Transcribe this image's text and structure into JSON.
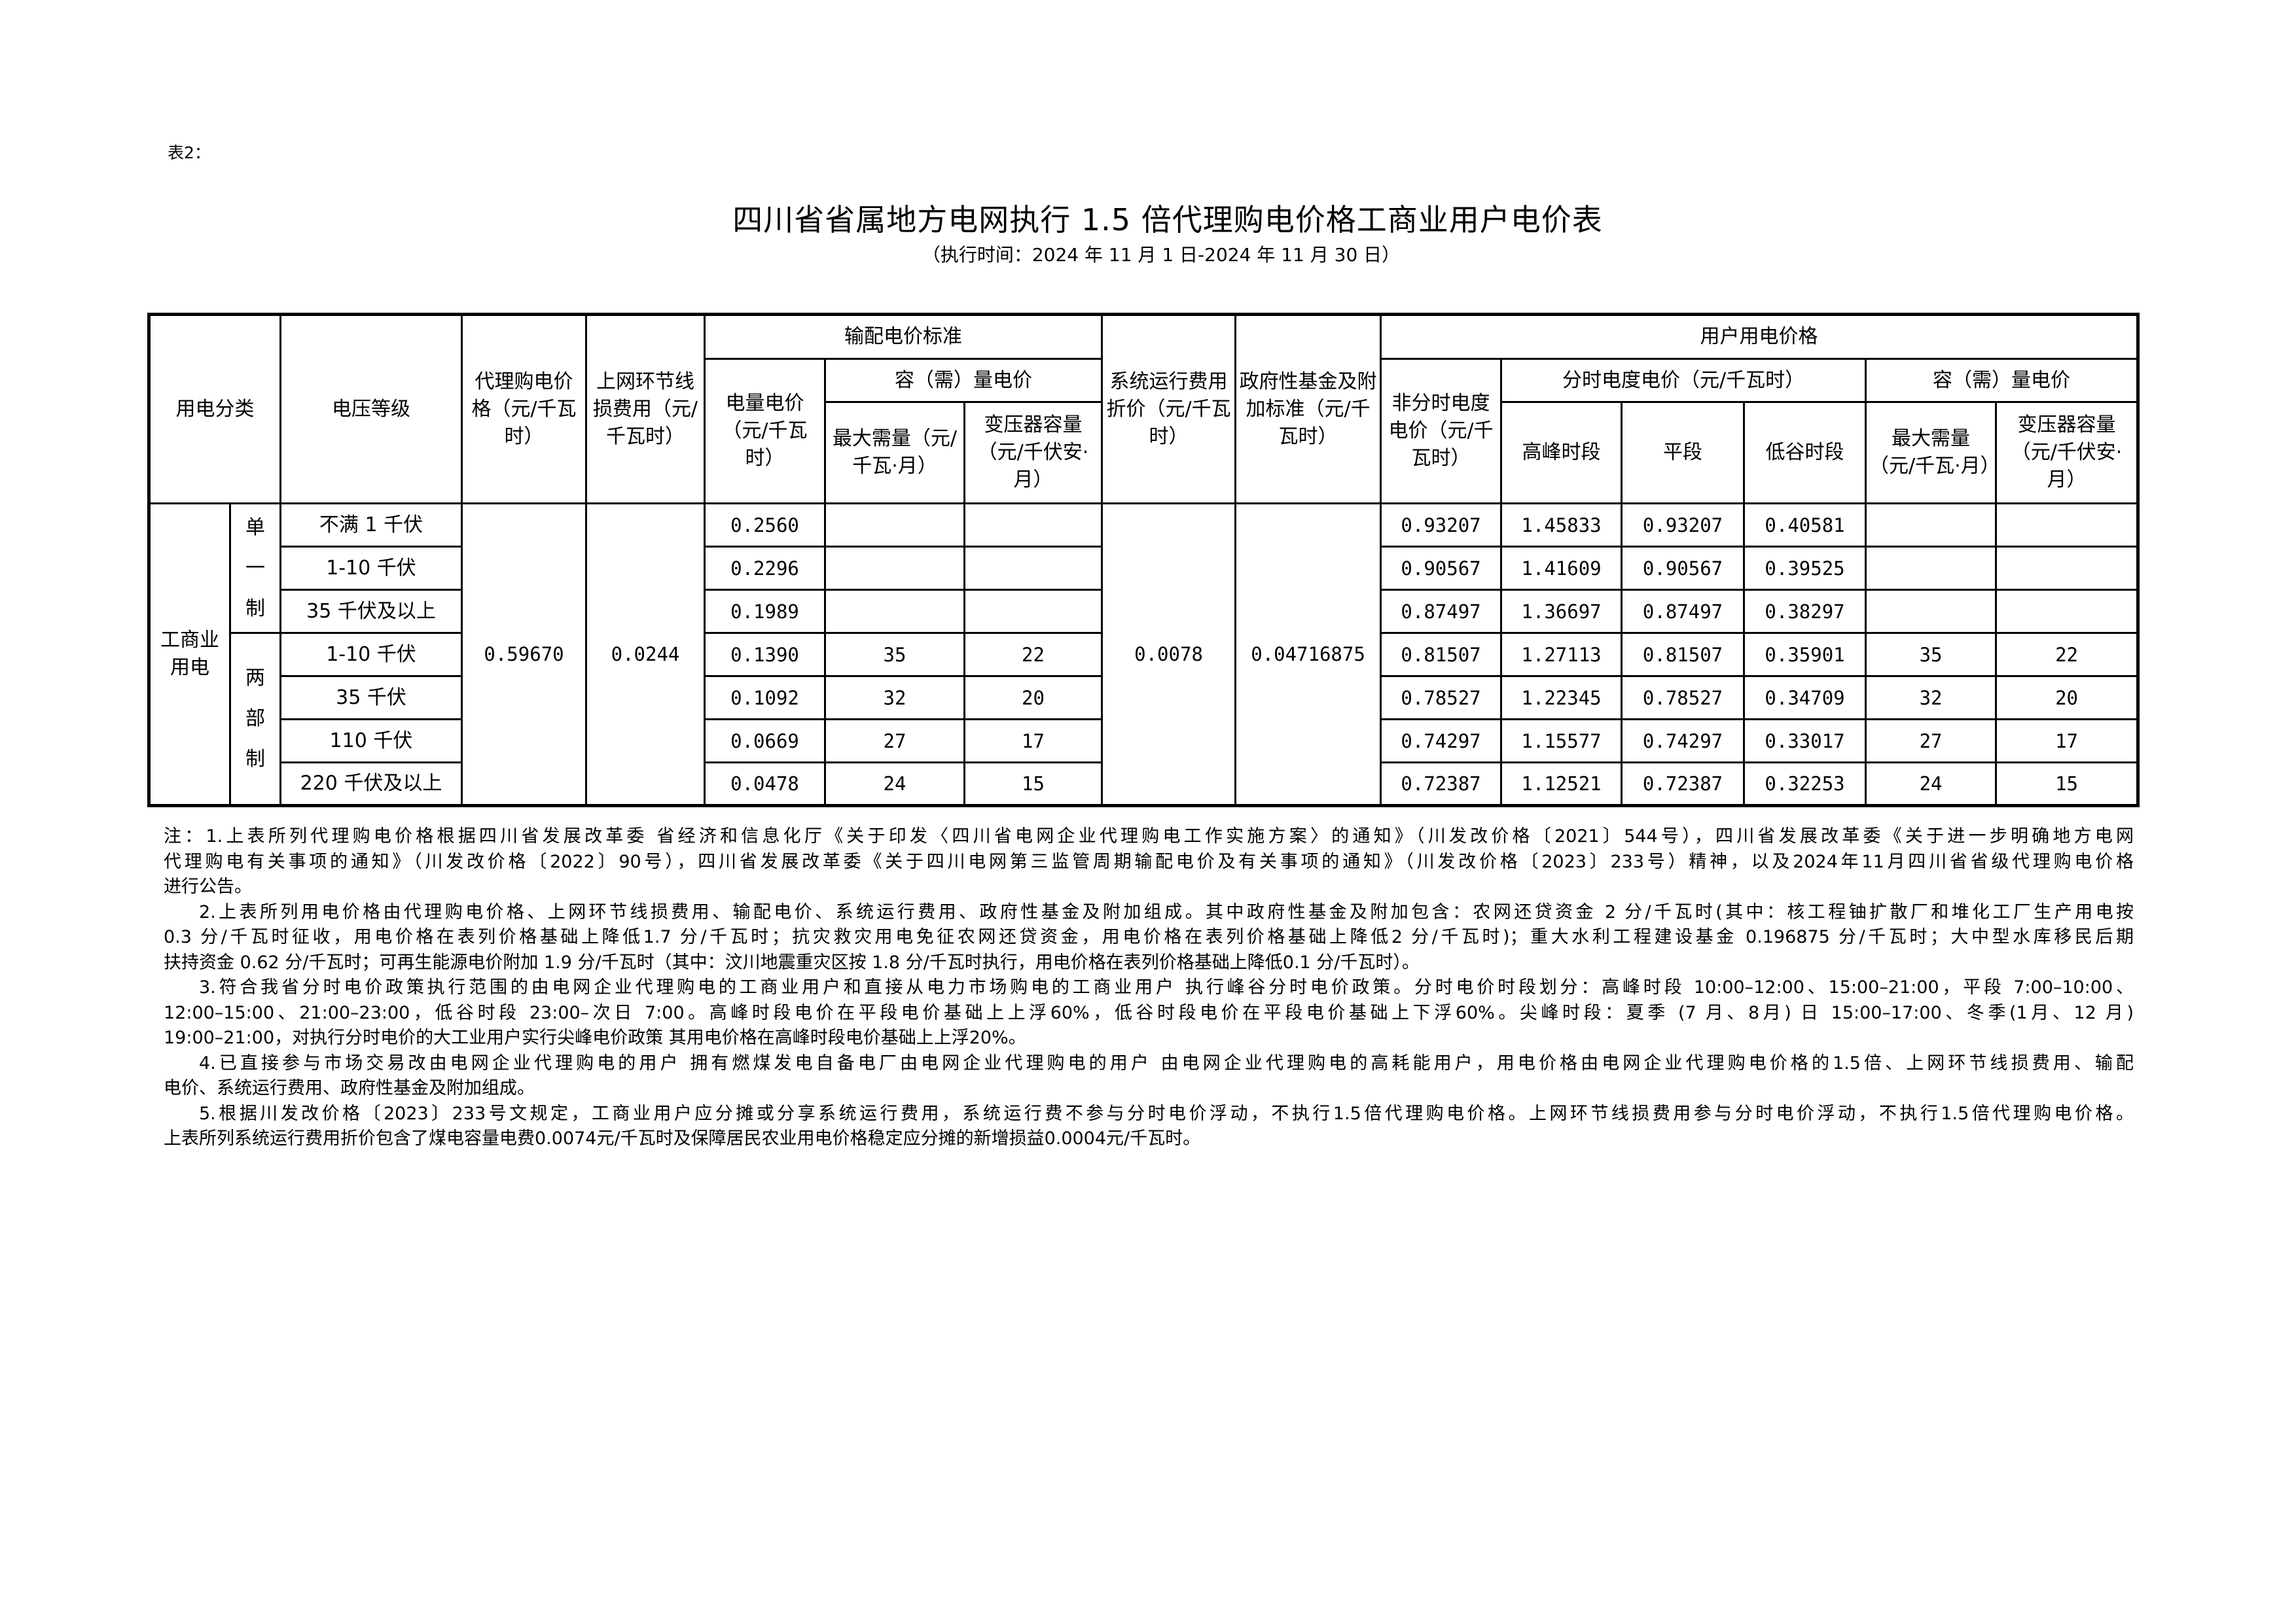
{
  "doc_label": "表2：",
  "title": "四川省省属地方电网执行 1.5 倍代理购电价格工商业用户电价表",
  "subtitle": "（执行时间：2024 年 11 月 1 日-2024 年 11 月 30 日）",
  "table": {
    "headers": {
      "category": "用电分类",
      "voltage": "电压等级",
      "agent_price": "代理购电价格（元/千瓦时）",
      "line_loss": "上网环节线损费用（元/千瓦时）",
      "transmission": "输配电价标准",
      "energy_price": "电量电价（元/千瓦时）",
      "capacity_price": "容（需）量电价",
      "max_demand": "最大需量（元/千瓦·月）",
      "transformer": "变压器容量（元/千伏安·月）",
      "system_cost": "系统运行费用折价（元/千瓦时）",
      "gov_fund": "政府性基金及附加标准（元/千瓦时）",
      "user_price": "用户用电价格",
      "non_tou": "非分时电度电价（元/千瓦时）",
      "tou": "分时电度电价（元/千瓦时）",
      "peak": "高峰时段",
      "flat": "平段",
      "valley": "低谷时段",
      "user_capacity": "容（需）量电价",
      "user_max_demand": "最大需量（元/千瓦·月）",
      "user_transformer": "变压器容量（元/千伏安·月）"
    },
    "category": "工商业用电",
    "groups": [
      "单一制",
      "两部制"
    ],
    "agent_price": "0.59670",
    "line_loss": "0.0244",
    "system_cost": "0.0078",
    "gov_fund": "0.04716875",
    "rows": [
      {
        "group": 0,
        "voltage": "不满 1 千伏",
        "energy": "0.2560",
        "max_demand": "",
        "transformer": "",
        "non_tou": "0.93207",
        "peak": "1.45833",
        "flat": "0.93207",
        "valley": "0.40581",
        "u_max_demand": "",
        "u_transformer": ""
      },
      {
        "group": 0,
        "voltage": "1-10 千伏",
        "energy": "0.2296",
        "max_demand": "",
        "transformer": "",
        "non_tou": "0.90567",
        "peak": "1.41609",
        "flat": "0.90567",
        "valley": "0.39525",
        "u_max_demand": "",
        "u_transformer": ""
      },
      {
        "group": 0,
        "voltage": "35 千伏及以上",
        "energy": "0.1989",
        "max_demand": "",
        "transformer": "",
        "non_tou": "0.87497",
        "peak": "1.36697",
        "flat": "0.87497",
        "valley": "0.38297",
        "u_max_demand": "",
        "u_transformer": ""
      },
      {
        "group": 1,
        "voltage": "1-10 千伏",
        "energy": "0.1390",
        "max_demand": "35",
        "transformer": "22",
        "non_tou": "0.81507",
        "peak": "1.27113",
        "flat": "0.81507",
        "valley": "0.35901",
        "u_max_demand": "35",
        "u_transformer": "22"
      },
      {
        "group": 1,
        "voltage": "35 千伏",
        "energy": "0.1092",
        "max_demand": "32",
        "transformer": "20",
        "non_tou": "0.78527",
        "peak": "1.22345",
        "flat": "0.78527",
        "valley": "0.34709",
        "u_max_demand": "32",
        "u_transformer": "20"
      },
      {
        "group": 1,
        "voltage": "110 千伏",
        "energy": "0.0669",
        "max_demand": "27",
        "transformer": "17",
        "non_tou": "0.74297",
        "peak": "1.15577",
        "flat": "0.74297",
        "valley": "0.33017",
        "u_max_demand": "27",
        "u_transformer": "17"
      },
      {
        "group": 1,
        "voltage": "220 千伏及以上",
        "energy": "0.0478",
        "max_demand": "24",
        "transformer": "15",
        "non_tou": "0.72387",
        "peak": "1.12521",
        "flat": "0.72387",
        "valley": "0.32253",
        "u_max_demand": "24",
        "u_transformer": "15"
      }
    ]
  },
  "notes": [
    "注：1.上表所列代理购电价格根据四川省发展改革委 省经济和信息化厅《关于印发〈四川省电网企业代理购电工作实施方案〉的通知》（川发改价格〔2021〕544号），四川省发展改革委《关于进一步明确地方电网",
    "代理购电有关事项的通知》（川发改价格〔2022〕90号），四川省发展改革委《关于四川电网第三监管周期输配电价及有关事项的通知》（川发改价格〔2023〕233号）精神，以及2024年11月四川省省级代理购电价格",
    "进行公告。",
    "2.上表所列用电价格由代理购电价格、上网环节线损费用、输配电价、系统运行费用、政府性基金及附加组成。其中政府性基金及附加包含：农网还贷资金 2 分/千瓦时(其中：核工程铀扩散厂和堆化工厂生产用电按",
    "0.3 分/千瓦时征收，用电价格在表列价格基础上降低1.7 分/千瓦时；抗灾救灾用电免征农网还贷资金，用电价格在表列价格基础上降低2 分/千瓦时)；重大水利工程建设基金 0.196875 分/千瓦时；大中型水库移民后期",
    "扶持资金 0.62 分/千瓦时；可再生能源电价附加 1.9 分/千瓦时（其中：汶川地震重灾区按 1.8 分/千瓦时执行，用电价格在表列价格基础上降低0.1 分/千瓦时）。",
    "3.符合我省分时电价政策执行范围的由电网企业代理购电的工商业用户和直接从电力市场购电的工商业用户 执行峰谷分时电价政策。分时电价时段划分：高峰时段 10:00–12:00、15:00–21:00，平段 7:00–10:00、",
    "12:00–15:00、21:00–23:00，低谷时段 23:00–次日 7:00。高峰时段电价在平段电价基础上上浮60%，低谷时段电价在平段电价基础上下浮60%。尖峰时段：夏季 (7 月、8月) 日 15:00–17:00、冬季(1月、12 月)",
    "19:00–21:00，对执行分时电价的大工业用户实行尖峰电价政策 其用电价格在高峰时段电价基础上上浮20%。",
    "4.已直接参与市场交易改由电网企业代理购电的用户 拥有燃煤发电自备电厂由电网企业代理购电的用户 由电网企业代理购电的高耗能用户，用电价格由电网企业代理购电价格的1.5倍、上网环节线损费用、输配",
    "电价、系统运行费用、政府性基金及附加组成。",
    "5.根据川发改价格〔2023〕233号文规定，工商业用户应分摊或分享系统运行费用，系统运行费不参与分时电价浮动，不执行1.5倍代理购电价格。上网环节线损费用参与分时电价浮动，不执行1.5倍代理购电价格。",
    "上表所列系统运行费用折价包含了煤电容量电费0.0074元/千瓦时及保障居民农业用电价格稳定应分摊的新增损益0.0004元/千瓦时。"
  ]
}
